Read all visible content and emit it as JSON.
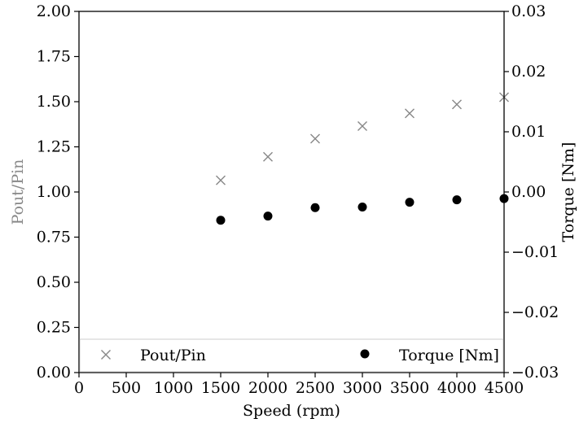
{
  "chart_data": {
    "type": "scatter",
    "xlabel": "Speed (rpm)",
    "ylabel_left": "Pout/Pin",
    "ylabel_right": "Torque [Nm]",
    "xlim": [
      0,
      4500
    ],
    "ylim_left": [
      0.0,
      2.0
    ],
    "ylim_right": [
      -0.03,
      0.03
    ],
    "x_ticks": [
      "0",
      "500",
      "1000",
      "1500",
      "2000",
      "2500",
      "3000",
      "3500",
      "4000",
      "4500"
    ],
    "y_left_ticks": [
      "0.00",
      "0.25",
      "0.50",
      "0.75",
      "1.00",
      "1.25",
      "1.50",
      "1.75",
      "2.00"
    ],
    "y_right_ticks": [
      "−0.03",
      "−0.02",
      "−0.01",
      "0.00",
      "0.01",
      "0.02",
      "0.03"
    ],
    "x": [
      1500,
      2000,
      2500,
      3000,
      3500,
      4000,
      4500
    ],
    "series": [
      {
        "name": "Pout/Pin",
        "axis": "left",
        "marker": "x",
        "color": "#888888",
        "values": [
          1.065,
          1.195,
          1.295,
          1.365,
          1.435,
          1.485,
          1.525
        ]
      },
      {
        "name": "Torque [Nm]",
        "axis": "right",
        "marker": "circle",
        "color": "#000000",
        "values": [
          -0.0047,
          -0.004,
          -0.0026,
          -0.0025,
          -0.0017,
          -0.0013,
          -0.0011
        ]
      }
    ],
    "legend": {
      "placement": "bottom",
      "entries": [
        "Pout/Pin",
        "Torque [Nm]"
      ]
    },
    "grid": false
  }
}
